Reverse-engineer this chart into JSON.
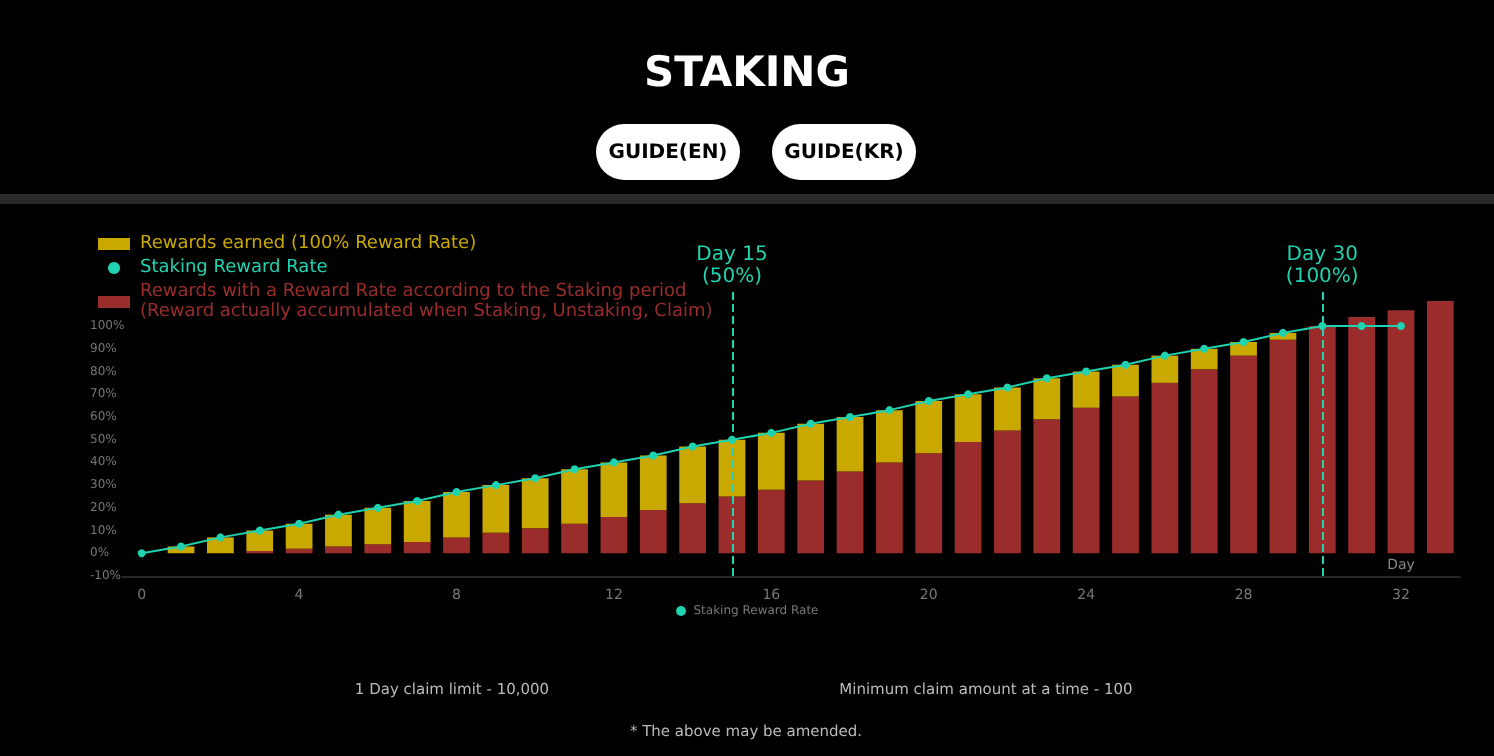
{
  "chart_data": {
    "type": "bar",
    "title": "STAKING",
    "annotations": [
      "GUIDE(EN)",
      "GUIDE(KR)",
      "1 Day claim limit - 10,000",
      "Minimum claim amount at a time - 100",
      "* The above may be amended."
    ],
    "xlabel": "Day",
    "x": [
      0,
      1,
      2,
      3,
      4,
      5,
      6,
      7,
      8,
      9,
      10,
      11,
      12,
      13,
      14,
      15,
      16,
      17,
      18,
      19,
      20,
      21,
      22,
      23,
      24,
      25,
      26,
      27,
      28,
      29,
      30,
      31,
      32,
      33
    ],
    "stacked": true,
    "series": [
      {
        "name": "Rewards with a Reward Rate according to the Staking period\n(Reward actually accumulated when Staking, Unstaking, Claim)",
        "color": "#9b2c2c",
        "values": [
          null,
          0,
          0,
          1,
          2,
          3,
          4,
          5,
          7,
          9,
          11,
          13,
          16,
          19,
          22,
          25,
          28,
          32,
          36,
          40,
          44,
          49,
          54,
          59,
          64,
          69,
          75,
          81,
          87,
          94,
          100,
          104,
          107,
          111
        ]
      },
      {
        "name": "Rewards earned (100% Reward Rate)",
        "color": "#c9a800",
        "values": [
          null,
          3,
          7,
          9,
          11,
          14,
          16,
          18,
          20,
          21,
          22,
          24,
          24,
          24,
          25,
          25,
          25,
          25,
          24,
          23,
          23,
          21,
          19,
          18,
          16,
          14,
          12,
          9,
          6,
          3,
          null,
          null,
          null,
          null
        ]
      },
      {
        "name": "Staking Reward Rate",
        "type": "line",
        "color": "#1fd3b0",
        "marker": "circle",
        "values": [
          0,
          3,
          7,
          10,
          13,
          17,
          20,
          23,
          27,
          30,
          33,
          37,
          40,
          43,
          47,
          50,
          53,
          57,
          60,
          63,
          67,
          70,
          73,
          77,
          80,
          83,
          87,
          90,
          93,
          97,
          100,
          100,
          100,
          null
        ]
      }
    ],
    "xlim": [
      -0.5,
      33.5
    ],
    "xticks": [
      0,
      4,
      8,
      12,
      16,
      20,
      24,
      28,
      32
    ],
    "ylim": [
      -10,
      115
    ],
    "yticks": [
      {
        "value": -10,
        "label": "-10%"
      },
      {
        "value": 0,
        "label": "0%"
      },
      {
        "value": 10,
        "label": "10%"
      },
      {
        "value": 20,
        "label": "20%"
      },
      {
        "value": 30,
        "label": "30%"
      },
      {
        "value": 40,
        "label": "40%"
      },
      {
        "value": 50,
        "label": "50%"
      },
      {
        "value": 60,
        "label": "60%"
      },
      {
        "value": 70,
        "label": "70%"
      },
      {
        "value": 80,
        "label": "80%"
      },
      {
        "value": 90,
        "label": "90%"
      },
      {
        "value": 100,
        "label": "100%"
      }
    ],
    "ref_lines": [
      {
        "axis": "x",
        "value": 15,
        "label": "Day 15\n(50%)",
        "color": "#1fd3b0",
        "line_style": "dashed"
      },
      {
        "axis": "x",
        "value": 30,
        "label": "Day 30\n(100%)",
        "color": "#1fd3b0",
        "line_style": "dashed"
      }
    ],
    "grid": false,
    "legend": "top left"
  }
}
